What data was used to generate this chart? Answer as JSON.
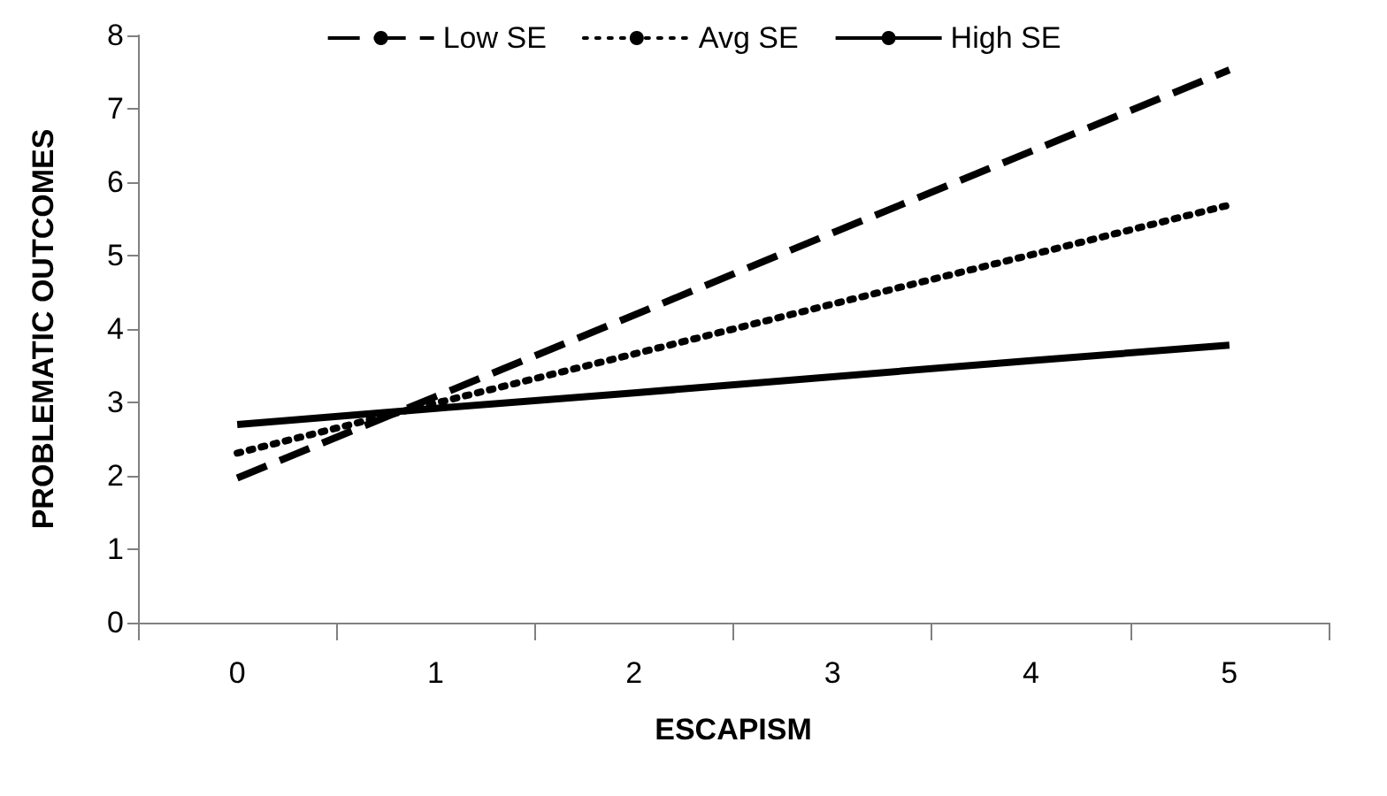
{
  "chart_data": {
    "type": "line",
    "xlabel": "ESCAPISM",
    "ylabel": "PROBLEMATIC OUTCOMES",
    "categories": [
      "0",
      "1",
      "2",
      "3",
      "4",
      "5"
    ],
    "ylim": [
      0,
      8
    ],
    "yticks": [
      0,
      1,
      2,
      3,
      4,
      5,
      6,
      7,
      8
    ],
    "grid": false,
    "legend": "top",
    "marker": "none",
    "series": [
      {
        "name": "Low SE",
        "color": "#000000",
        "line_style": "dashed",
        "values": [
          1.97,
          3.08,
          4.19,
          5.31,
          6.42,
          7.53
        ]
      },
      {
        "name": "Avg SE",
        "color": "#000000",
        "line_style": "dotted",
        "values": [
          2.31,
          2.99,
          3.66,
          4.34,
          5.01,
          5.69
        ]
      },
      {
        "name": "High SE",
        "color": "#000000",
        "line_style": "solid",
        "values": [
          2.7,
          2.92,
          3.13,
          3.35,
          3.57,
          3.78
        ]
      }
    ]
  }
}
